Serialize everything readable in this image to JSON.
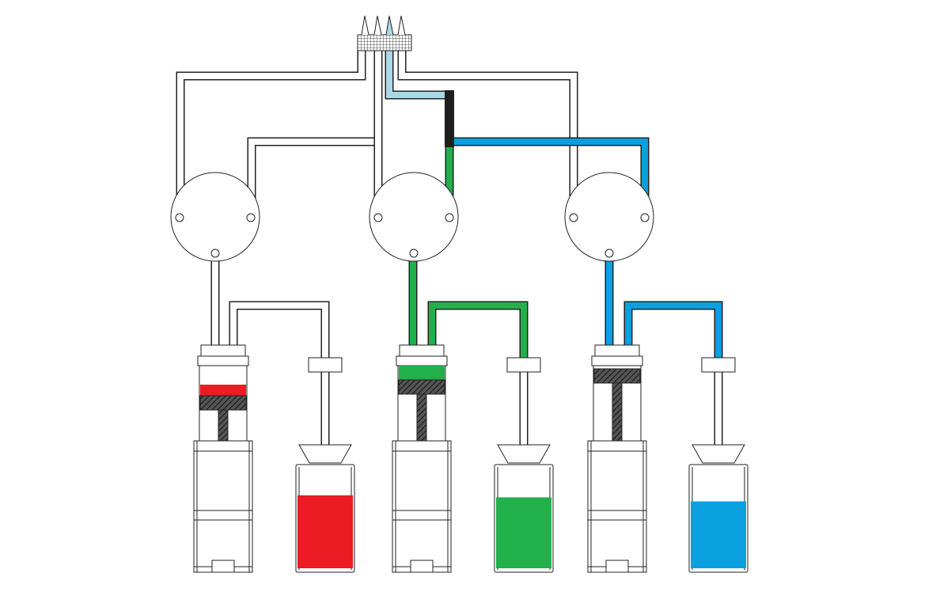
{
  "colors": {
    "background": "#ffffff",
    "stroke": "#222222",
    "tube_empty": "#ffffff",
    "manifold_fill": "#a8d8e6",
    "black_segment": "#1e1e1e",
    "red": "#ed1c24",
    "green": "#22b04b",
    "blue": "#0aa0e0"
  },
  "icons": [
    "manifold-needle-icon",
    "valve-icon",
    "syringe-pump-icon",
    "reagent-bottle-icon",
    "filter-funnel-icon"
  ],
  "units": [
    {
      "id": "pump-1",
      "color_key": "red",
      "plunger_fill_fraction": 0.35,
      "bottle_fill_fraction": 0.72,
      "active": false
    },
    {
      "id": "pump-2",
      "color_key": "green",
      "plunger_fill_fraction": 0.45,
      "bottle_fill_fraction": 0.7,
      "active": true
    },
    {
      "id": "pump-3",
      "color_key": "blue",
      "plunger_fill_fraction": 0.0,
      "bottle_fill_fraction": 0.66,
      "active": true
    }
  ]
}
